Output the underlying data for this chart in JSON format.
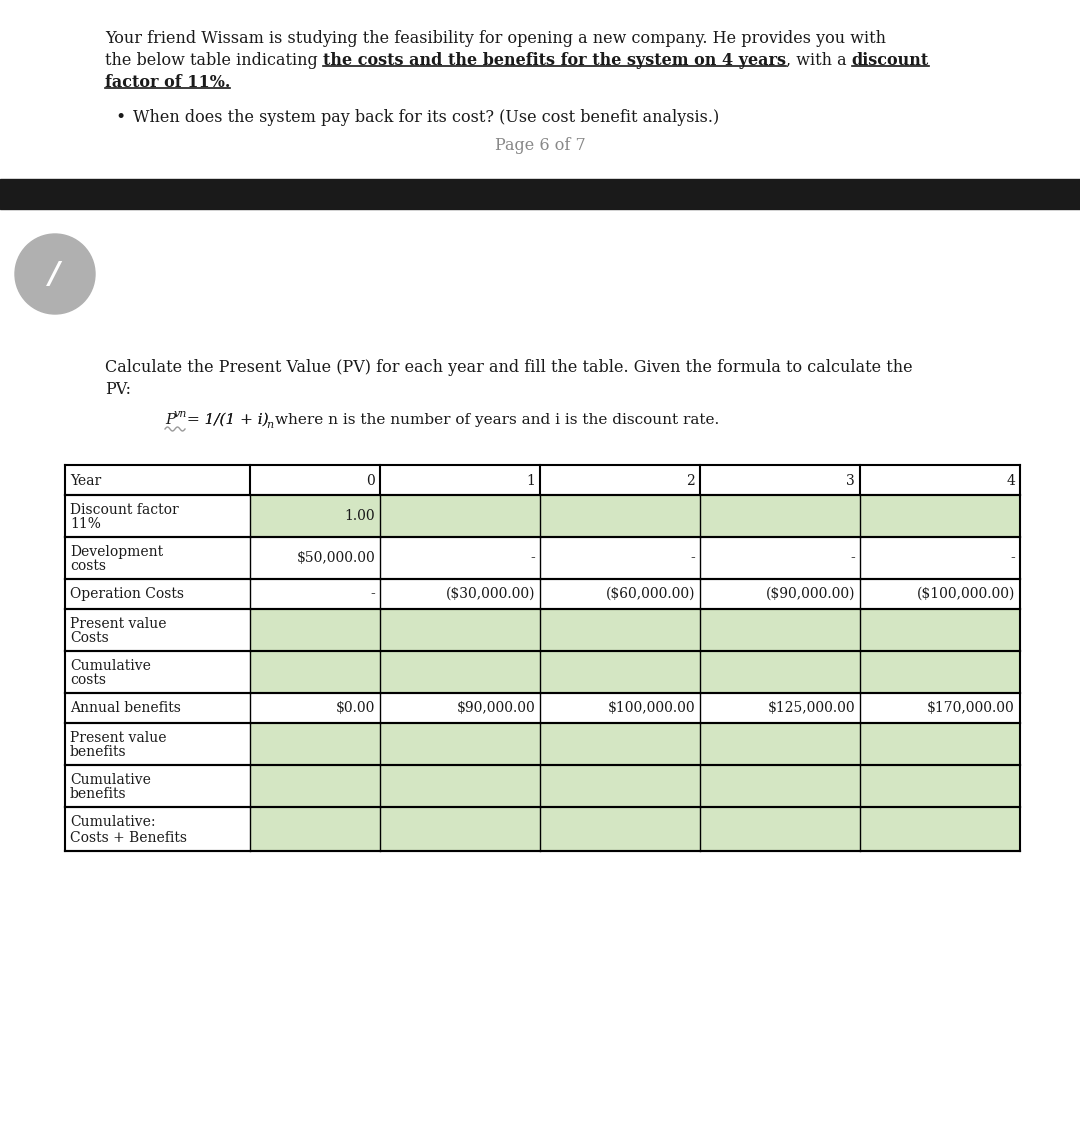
{
  "bg_color": "#ffffff",
  "black_bar_color": "#1a1a1a",
  "bullet_text": "When does the system pay back for its cost? (Use cost benefit analysis.)",
  "page_text": "Page 6 of 7",
  "table_header": [
    "Year",
    "0",
    "1",
    "2",
    "3",
    "4"
  ],
  "row_labels": [
    "Discount factor\n11%",
    "Development\ncosts",
    "Operation Costs",
    "Present value\nCosts",
    "Cumulative\ncosts",
    "Annual benefits",
    "Present value\nbenefits",
    "Cumulative\nbenefits",
    "Cumulative:\nCosts + Benefits"
  ],
  "table_data": [
    [
      "1.00",
      "",
      "",
      "",
      ""
    ],
    [
      "$50,000.00",
      "-",
      "-",
      "-",
      "-"
    ],
    [
      "-",
      "($30,000.00)",
      "($60,000.00)",
      "($90,000.00)",
      "($100,000.00)"
    ],
    [
      "",
      "",
      "",
      "",
      ""
    ],
    [
      "",
      "",
      "",
      "",
      ""
    ],
    [
      "$0.00",
      "$90,000.00",
      "$100,000.00",
      "$125,000.00",
      "$170,000.00"
    ],
    [
      "",
      "",
      "",
      "",
      ""
    ],
    [
      "",
      "",
      "",
      "",
      ""
    ],
    [
      "",
      "",
      "",
      "",
      ""
    ]
  ],
  "green_fill": "#d4e6c3",
  "white_fill": "#ffffff",
  "table_text_color": "#1a1a1a",
  "font_size_intro": 11.5,
  "font_size_table": 10,
  "font_size_formula": 11,
  "circle_color": "#b0b0b0"
}
